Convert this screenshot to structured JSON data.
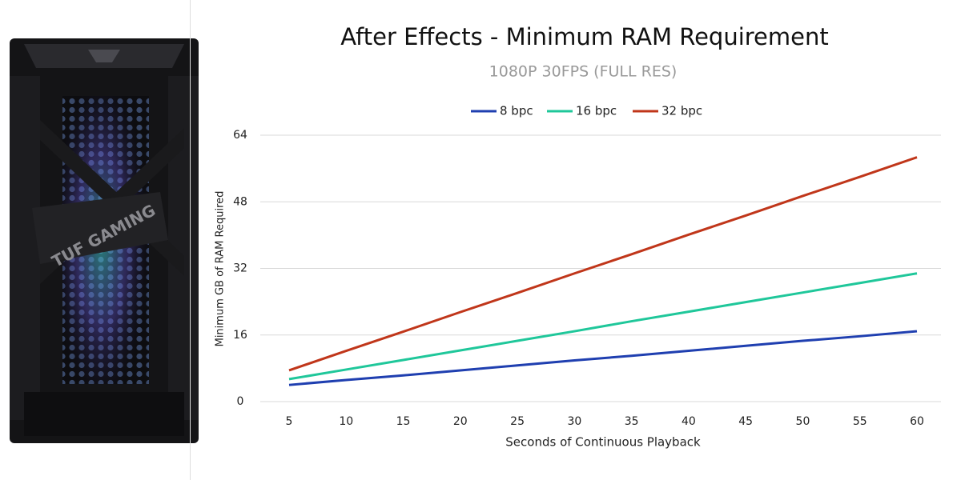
{
  "case_label": "TUF GAMING",
  "chart_data": {
    "type": "line",
    "title": "After Effects - Minimum RAM Requirement",
    "subtitle": "1080P 30FPS (FULL RES)",
    "x_label": "Seconds of Continuous Playback",
    "y_label": "Minimum GB of RAM Required",
    "x": [
      5,
      10,
      15,
      20,
      25,
      30,
      35,
      40,
      45,
      50,
      55,
      60
    ],
    "xlim": [
      5,
      60
    ],
    "xticks": [
      5,
      10,
      15,
      20,
      25,
      30,
      35,
      40,
      45,
      50,
      55,
      60
    ],
    "ylim": [
      0,
      64
    ],
    "yticks": [
      0,
      16,
      32,
      48,
      64
    ],
    "grid": true,
    "legend": "top",
    "series": [
      {
        "name": "8 bpc",
        "color": "#1f3fb0",
        "values": [
          4.0,
          5.2,
          6.3,
          7.5,
          8.7,
          9.9,
          11.0,
          12.2,
          13.4,
          14.6,
          15.7,
          16.9
        ]
      },
      {
        "name": "16 bpc",
        "color": "#1fc79a",
        "values": [
          5.4,
          7.7,
          10.0,
          12.3,
          14.6,
          16.9,
          19.3,
          21.6,
          23.9,
          26.2,
          28.5,
          30.8
        ]
      },
      {
        "name": "32 bpc",
        "color": "#c0361a",
        "values": [
          7.5,
          12.2,
          16.8,
          21.5,
          26.1,
          30.8,
          35.4,
          40.1,
          44.7,
          49.4,
          54.0,
          58.7
        ]
      }
    ]
  }
}
